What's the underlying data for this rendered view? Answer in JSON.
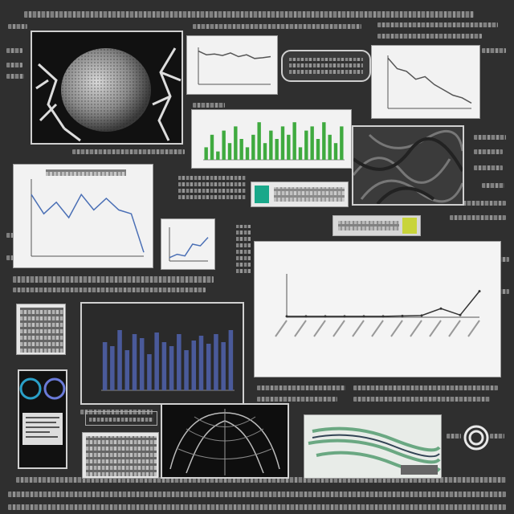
{
  "big_chart": {
    "title_line1": "",
    "title_line2": "",
    "xlabel": "",
    "line_color": "#333333"
  },
  "colors": {
    "background": "#2f2f2f",
    "bar_blue": "#4a5a9a",
    "bar_green": "#3faa3f",
    "line_blue": "#4a6fb5",
    "teal_icon": "#1aa88a",
    "yellow_icon": "#c8d43a"
  },
  "icons": {
    "ring": "ring-icon",
    "green_square": "green-square-icon",
    "yellow_square": "yellow-square-icon"
  },
  "chart_data": [
    {
      "type": "line",
      "values": [
        0.9,
        0.8,
        0.82,
        0.78,
        0.85,
        0.75,
        0.8,
        0.7,
        0.72,
        0.75
      ],
      "ylim": [
        0,
        1
      ]
    },
    {
      "type": "bar",
      "values": [
        3,
        6,
        2,
        7,
        4,
        8,
        5,
        3,
        6,
        9,
        4,
        7,
        5,
        8,
        6,
        9,
        3,
        7,
        8,
        5,
        9,
        6,
        4,
        8
      ],
      "ylim": [
        0,
        10
      ]
    },
    {
      "type": "line",
      "values": [
        0.95,
        0.75,
        0.7,
        0.55,
        0.6,
        0.45,
        0.35,
        0.25,
        0.2,
        0.1
      ],
      "ylim": [
        0,
        1
      ]
    },
    {
      "type": "line",
      "values": [
        0.8,
        0.55,
        0.7,
        0.5,
        0.8,
        0.6,
        0.75,
        0.6,
        0.55,
        0.05
      ],
      "ylim": [
        0,
        1
      ]
    },
    {
      "type": "line",
      "values": [
        0.1,
        0.2,
        0.15,
        0.5,
        0.45,
        0.7
      ],
      "ylim": [
        0,
        1
      ]
    },
    {
      "type": "bar",
      "values": [
        0.6,
        0.55,
        0.75,
        0.5,
        0.7,
        0.65,
        0.45,
        0.72,
        0.6,
        0.55,
        0.7,
        0.5,
        0.62,
        0.68,
        0.58,
        0.7,
        0.6,
        0.75
      ],
      "ylim": [
        0,
        1
      ]
    },
    {
      "type": "line",
      "values": [
        0.02,
        0.02,
        0.02,
        0.02,
        0.02,
        0.02,
        0.03,
        0.04,
        0.2,
        0.05,
        0.6
      ],
      "ylim": [
        0,
        1
      ]
    }
  ]
}
